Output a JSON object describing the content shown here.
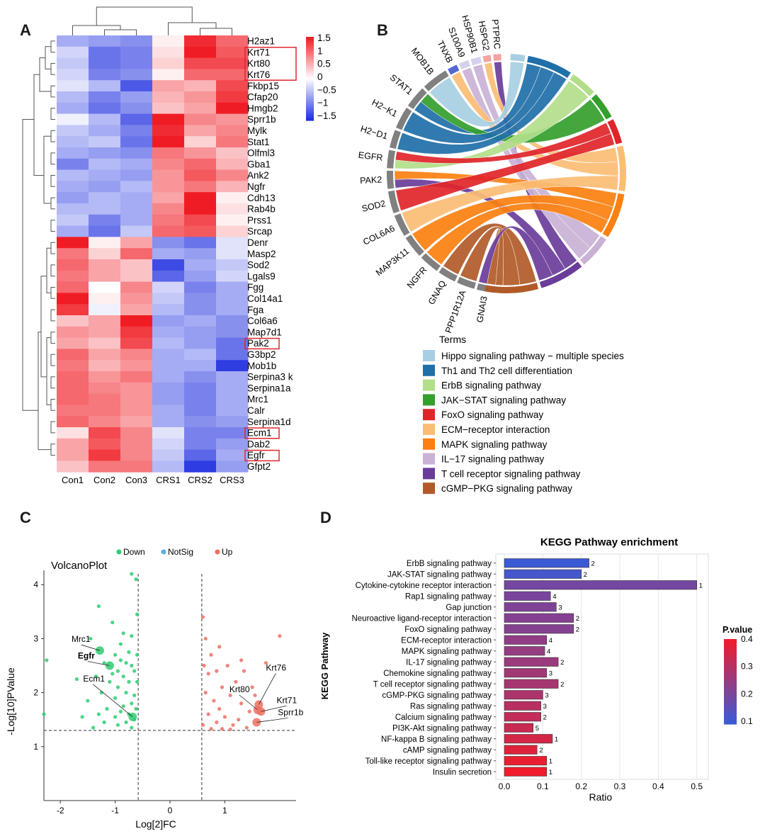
{
  "panels": {
    "A": "A",
    "B": "B",
    "C": "C",
    "D": "D"
  },
  "chart_data": [
    {
      "type": "heatmap",
      "panel": "A",
      "columns": [
        "Con1",
        "Con2",
        "Con3",
        "CRS1",
        "CRS2",
        "CRS3"
      ],
      "rows": [
        "H2az1",
        "Krt71",
        "Krt80",
        "Krt76",
        "Fkbp15",
        "Cfap20",
        "Hmgb2",
        "Sprr1b",
        "Mylk",
        "Stat1",
        "Olfml3",
        "Gba1",
        "Ank2",
        "Ngfr",
        "Cdh13",
        "Rab4b",
        "Prss1",
        "Srcap",
        "Denr",
        "Masp2",
        "Sod2",
        "Lgals9",
        "Fgg",
        "Col14a1",
        "Fga",
        "Col6a6",
        "Map7d1",
        "Pak2",
        "G3bp2",
        "Mob1b",
        "Serpina3 k",
        "Serpina1a",
        "Mrc1",
        "Calr",
        "Serpina1d",
        "Ecm1",
        "Dab2",
        "Egfr",
        "Gfpt2"
      ],
      "highlighted_rows": [
        "Krt71",
        "Krt80",
        "Krt76",
        "Pak2",
        "Ecm1",
        "Egfr"
      ],
      "values": [
        [
          -0.6,
          -0.7,
          -0.8,
          0.1,
          1.4,
          1.0
        ],
        [
          -0.3,
          -1.0,
          -0.9,
          0.2,
          1.5,
          1.1
        ],
        [
          -0.4,
          -1.0,
          -0.9,
          0.3,
          1.2,
          1.2
        ],
        [
          -0.3,
          -0.9,
          -0.8,
          0.1,
          1.0,
          1.0
        ],
        [
          -0.2,
          -0.5,
          -1.2,
          0.6,
          0.5,
          1.2
        ],
        [
          -0.5,
          -0.9,
          -0.7,
          0.5,
          0.7,
          1.3
        ],
        [
          -0.6,
          -1.0,
          -0.8,
          0.4,
          0.6,
          1.6
        ],
        [
          -0.1,
          -0.5,
          -1.1,
          1.5,
          0.8,
          0.7
        ],
        [
          -0.4,
          -0.6,
          -0.9,
          1.4,
          0.6,
          0.8
        ],
        [
          -0.5,
          -0.4,
          -1.0,
          1.6,
          0.3,
          0.9
        ],
        [
          -0.6,
          -0.7,
          -0.8,
          0.9,
          0.7,
          0.4
        ],
        [
          -0.9,
          -0.5,
          -0.6,
          0.8,
          1.0,
          0.5
        ],
        [
          -0.5,
          -0.6,
          -0.7,
          0.7,
          1.1,
          0.8
        ],
        [
          -0.6,
          -0.7,
          -0.5,
          0.7,
          0.9,
          0.5
        ],
        [
          -0.7,
          -0.5,
          -0.6,
          0.6,
          1.6,
          0.1
        ],
        [
          -0.5,
          -0.5,
          -0.6,
          0.8,
          1.5,
          0.2
        ],
        [
          -0.4,
          -0.9,
          -0.6,
          0.9,
          1.2,
          0.1
        ],
        [
          -0.6,
          -1.0,
          -0.4,
          1.0,
          1.1,
          0.3
        ],
        [
          1.5,
          0.1,
          0.6,
          -0.8,
          -1.0,
          -0.2
        ],
        [
          0.9,
          0.3,
          1.0,
          -0.6,
          -0.7,
          -0.2
        ],
        [
          1.0,
          0.6,
          0.4,
          -1.3,
          -0.6,
          -0.4
        ],
        [
          0.9,
          0.6,
          0.4,
          -1.1,
          -0.7,
          -0.3
        ],
        [
          1.0,
          0.0,
          0.8,
          -0.3,
          -0.9,
          -0.6
        ],
        [
          1.5,
          0.1,
          0.7,
          -0.4,
          -0.8,
          -0.6
        ],
        [
          1.3,
          -0.1,
          0.6,
          -0.5,
          -0.8,
          -0.6
        ],
        [
          0.4,
          0.6,
          1.5,
          -0.7,
          -0.6,
          -0.8
        ],
        [
          0.7,
          0.6,
          1.3,
          -0.6,
          -0.7,
          -0.8
        ],
        [
          0.6,
          0.4,
          1.2,
          -0.5,
          -0.7,
          -1.0
        ],
        [
          1.0,
          0.6,
          0.8,
          -0.6,
          -0.5,
          -1.0
        ],
        [
          0.9,
          0.5,
          0.7,
          -0.6,
          -0.6,
          -1.4
        ],
        [
          1.0,
          0.7,
          0.9,
          -0.6,
          -0.8,
          -0.6
        ],
        [
          1.0,
          0.8,
          0.7,
          -0.7,
          -0.9,
          -0.6
        ],
        [
          1.0,
          0.9,
          0.7,
          -0.7,
          -0.9,
          -0.6
        ],
        [
          0.9,
          0.9,
          0.7,
          -0.6,
          -0.9,
          -0.6
        ],
        [
          1.0,
          0.8,
          0.6,
          -0.6,
          -0.8,
          -0.7
        ],
        [
          0.2,
          1.2,
          0.8,
          -0.2,
          -0.9,
          -0.9
        ],
        [
          0.6,
          1.1,
          0.8,
          -0.3,
          -0.9,
          -0.7
        ],
        [
          0.6,
          1.3,
          0.8,
          -0.4,
          -1.1,
          -0.6
        ],
        [
          0.4,
          0.9,
          0.9,
          -0.5,
          -1.4,
          -0.7
        ]
      ],
      "colorbar": {
        "ticks": [
          "1.5",
          "1",
          "0.5",
          "0",
          "−0.5",
          "−1",
          "−1.5"
        ],
        "range": [
          -1.5,
          1.5
        ],
        "low": "#1f2fe0",
        "mid": "#ffffff",
        "high": "#f01c24"
      }
    },
    {
      "type": "chord",
      "panel": "B",
      "genes": [
        "PTPRC",
        "HSPG2",
        "HSP90B1",
        "S100A9",
        "TNXB",
        "MOB1B",
        "STAT1",
        "H2−K1",
        "H2−D1",
        "EGFR",
        "PAK2",
        "SOD2",
        "COL6A6",
        "MAP3K11",
        "NGFR",
        "GNAQ",
        "PPP1R12A",
        "GNAI3"
      ],
      "legend_title": "Terms",
      "terms": [
        {
          "name": "Hippo signaling pathway − multiple species",
          "color": "#a6cfe3"
        },
        {
          "name": "Th1 and Th2 cell differentiation",
          "color": "#1f6fa8"
        },
        {
          "name": "ErbB signaling pathway",
          "color": "#b2de8a"
        },
        {
          "name": "JAK−STAT signaling pathway",
          "color": "#33a02c"
        },
        {
          "name": "FoxO signaling pathway",
          "color": "#e0252a"
        },
        {
          "name": "ECM−receptor interaction",
          "color": "#fbbd74"
        },
        {
          "name": "MAPK signaling pathway",
          "color": "#fb8010"
        },
        {
          "name": "IL−17 signaling pathway",
          "color": "#cab2d6"
        },
        {
          "name": "T cell receptor signaling pathway",
          "color": "#6a3d9a"
        },
        {
          "name": "cGMP−PKG signaling pathway",
          "color": "#b15a28"
        }
      ]
    },
    {
      "type": "scatter",
      "panel": "C",
      "title": "VolcanoPlot",
      "xlabel": "Log[2]FC",
      "ylabel": "-Log[10]PValue",
      "xlim": [
        -2.3,
        2.3
      ],
      "ylim": [
        0,
        4.2
      ],
      "xticks": [
        "-2",
        "-1",
        "0",
        "1"
      ],
      "xtick_values": [
        -2,
        -1,
        0,
        1
      ],
      "yticks": [
        "1",
        "2",
        "3",
        "4"
      ],
      "ytick_values": [
        1,
        2,
        3,
        4
      ],
      "thresholds": {
        "x": [
          -0.58,
          0.58
        ],
        "y": 1.3
      },
      "legend": [
        {
          "name": "Down",
          "color": "#2ecc71"
        },
        {
          "name": "NotSig",
          "color": "#5dade2"
        },
        {
          "name": "Up",
          "color": "#ec7063"
        }
      ],
      "down_points": [
        [
          -0.7,
          4.2
        ],
        [
          -0.62,
          4.1
        ],
        [
          -1.3,
          3.6
        ],
        [
          -0.6,
          3.45
        ],
        [
          -1.05,
          3.3
        ],
        [
          -0.85,
          3.1
        ],
        [
          -0.7,
          3.05
        ],
        [
          -1.45,
          3.0
        ],
        [
          -0.9,
          2.9
        ],
        [
          -0.75,
          2.75
        ],
        [
          -1.0,
          2.7
        ],
        [
          -0.6,
          2.7
        ],
        [
          -1.2,
          2.55
        ],
        [
          -0.8,
          2.55
        ],
        [
          -0.95,
          2.4
        ],
        [
          -0.65,
          2.4
        ],
        [
          -1.35,
          2.3
        ],
        [
          -0.85,
          2.3
        ],
        [
          -1.1,
          2.2
        ],
        [
          -0.75,
          2.2
        ],
        [
          -0.6,
          2.2
        ],
        [
          -0.95,
          2.1
        ],
        [
          -1.25,
          2.0
        ],
        [
          -0.8,
          2.0
        ],
        [
          -0.65,
          1.95
        ],
        [
          -1.0,
          1.9
        ],
        [
          -1.5,
          1.85
        ],
        [
          -0.7,
          1.8
        ],
        [
          -0.85,
          1.75
        ],
        [
          -1.15,
          1.7
        ],
        [
          -0.62,
          1.7
        ],
        [
          -0.9,
          1.65
        ],
        [
          -1.3,
          1.6
        ],
        [
          -0.75,
          1.6
        ],
        [
          -1.6,
          1.55
        ],
        [
          -1.0,
          1.55
        ],
        [
          -0.65,
          1.5
        ],
        [
          -0.8,
          1.45
        ],
        [
          -1.2,
          1.45
        ],
        [
          -0.95,
          1.4
        ],
        [
          -0.7,
          1.35
        ],
        [
          -2.25,
          2.6
        ],
        [
          -2.3,
          1.6
        ],
        [
          -1.7,
          2.25
        ],
        [
          -0.9,
          2.6
        ],
        [
          -1.05,
          2.35
        ],
        [
          -0.7,
          2.5
        ],
        [
          -1.4,
          1.35
        ]
      ],
      "up_points": [
        [
          0.6,
          3.4
        ],
        [
          0.65,
          3.0
        ],
        [
          0.9,
          2.85
        ],
        [
          0.75,
          2.7
        ],
        [
          1.05,
          2.5
        ],
        [
          0.85,
          2.4
        ],
        [
          1.35,
          2.4
        ],
        [
          0.7,
          2.35
        ],
        [
          1.2,
          2.2
        ],
        [
          0.95,
          2.1
        ],
        [
          1.5,
          2.1
        ],
        [
          0.65,
          2.0
        ],
        [
          1.1,
          1.95
        ],
        [
          0.8,
          1.85
        ],
        [
          1.3,
          1.8
        ],
        [
          0.9,
          1.7
        ],
        [
          1.45,
          1.65
        ],
        [
          0.7,
          1.6
        ],
        [
          1.0,
          1.55
        ],
        [
          1.25,
          1.5
        ],
        [
          0.85,
          1.45
        ],
        [
          0.6,
          1.4
        ],
        [
          1.15,
          1.4
        ],
        [
          1.4,
          1.35
        ],
        [
          0.95,
          1.33
        ],
        [
          0.75,
          1.33
        ],
        [
          2.0,
          3.05
        ],
        [
          1.75,
          2.55
        ],
        [
          1.3,
          2.6
        ],
        [
          0.62,
          2.5
        ],
        [
          1.55,
          1.95
        ],
        [
          1.1,
          1.32
        ]
      ],
      "labeled_points": [
        {
          "label": "Mrc1",
          "x": -1.28,
          "y": 2.78,
          "group": "down"
        },
        {
          "label": "Egfr",
          "x": -1.1,
          "y": 2.5,
          "group": "down"
        },
        {
          "label": "Ecm1",
          "x": -0.68,
          "y": 1.55,
          "group": "down"
        },
        {
          "label": "Krt76",
          "x": 1.62,
          "y": 1.78,
          "group": "up"
        },
        {
          "label": "Krt80",
          "x": 1.6,
          "y": 1.68,
          "group": "up"
        },
        {
          "label": "Krt71",
          "x": 1.66,
          "y": 1.65,
          "group": "up"
        },
        {
          "label": "Sprr1b",
          "x": 1.58,
          "y": 1.45,
          "group": "up"
        }
      ]
    },
    {
      "type": "bar",
      "panel": "D",
      "orientation": "horizontal",
      "title": "KEGG Pathway enrichment",
      "xlabel": "Ratio",
      "ylabel": "KEGG Pathway",
      "xlim": [
        0,
        0.53
      ],
      "xticks": [
        "0.0",
        "0.1",
        "0.2",
        "0.3",
        "0.4",
        "0.5"
      ],
      "xtick_values": [
        0,
        0.1,
        0.2,
        0.3,
        0.4,
        0.5
      ],
      "categories": [
        "ErbB signaling pathway",
        "JAK-STAT signaling pathway",
        "Cytokine-cytokine receptor interaction",
        "Rap1 signaling pathway",
        "Gap junction",
        "Neuroactive ligand-receptor interaction",
        "FoxO signaling pathway",
        "ECM-receptor interaction",
        "MAPK signaling pathway",
        "IL-17 signaling pathway",
        "Chemokine signaling pathway",
        "T cell receptor signaling pathway",
        "cGMP-PKG signaling pathway",
        "Ras signaling pathway",
        "Calcium signaling pathway",
        "PI3K-Akt signaling pathway",
        "NF-kappa B signaling pathway",
        "cAMP signaling pathway",
        "Toll-like receptor signaling pathway",
        "Insulin secretion"
      ],
      "values": [
        0.22,
        0.2,
        0.5,
        0.12,
        0.135,
        0.18,
        0.18,
        0.11,
        0.105,
        0.14,
        0.11,
        0.14,
        0.1,
        0.095,
        0.095,
        0.075,
        0.125,
        0.085,
        0.11,
        0.11
      ],
      "counts": [
        "2",
        "2",
        "1",
        "4",
        "3",
        "2",
        "2",
        "4",
        "4",
        "2",
        "3",
        "2",
        "3",
        "3",
        "2",
        "5",
        "1",
        "2",
        "1",
        "1"
      ],
      "pvalues": [
        0.08,
        0.1,
        0.18,
        0.19,
        0.2,
        0.21,
        0.21,
        0.23,
        0.24,
        0.25,
        0.26,
        0.27,
        0.28,
        0.3,
        0.32,
        0.33,
        0.35,
        0.37,
        0.39,
        0.4
      ],
      "legend": {
        "title": "P.value",
        "ticks": [
          "0.4",
          "0.3",
          "0.2",
          "0.1"
        ],
        "tick_values": [
          0.4,
          0.3,
          0.2,
          0.1
        ],
        "low_color": "#3b5bd6",
        "high_color": "#f01c2c"
      }
    }
  ]
}
